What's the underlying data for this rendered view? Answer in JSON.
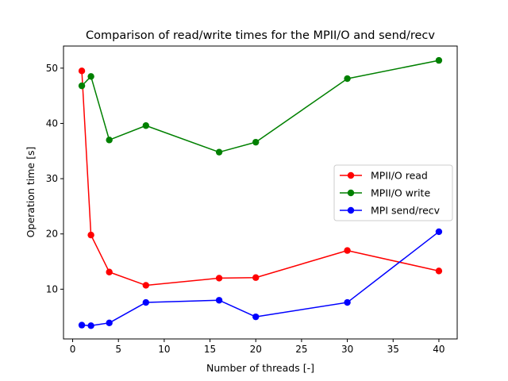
{
  "chart_data": {
    "type": "line",
    "title": "Comparison of read/write times for the MPII/O and send/recv",
    "xlabel": "Number of threads [-]",
    "ylabel": "Operation time [s]",
    "x": [
      1,
      2,
      4,
      8,
      16,
      20,
      30,
      40
    ],
    "xlim": [
      -1,
      42
    ],
    "ylim": [
      1,
      54
    ],
    "xticks": [
      0,
      5,
      10,
      15,
      20,
      25,
      30,
      35,
      40
    ],
    "yticks": [
      10,
      20,
      30,
      40,
      50
    ],
    "grid": false,
    "legend_position": "center-right",
    "series": [
      {
        "name": "MPII/O read",
        "color": "#ff0000",
        "values": [
          49.5,
          19.8,
          13.1,
          10.7,
          12.0,
          12.1,
          17.0,
          13.3
        ]
      },
      {
        "name": "MPII/O write",
        "color": "#008000",
        "values": [
          46.8,
          48.5,
          37.0,
          39.6,
          34.8,
          36.6,
          48.1,
          51.4
        ]
      },
      {
        "name": "MPI send/recv",
        "color": "#0000ff",
        "values": [
          3.5,
          3.4,
          3.9,
          7.6,
          8.0,
          5.0,
          7.6,
          20.4
        ]
      }
    ]
  }
}
